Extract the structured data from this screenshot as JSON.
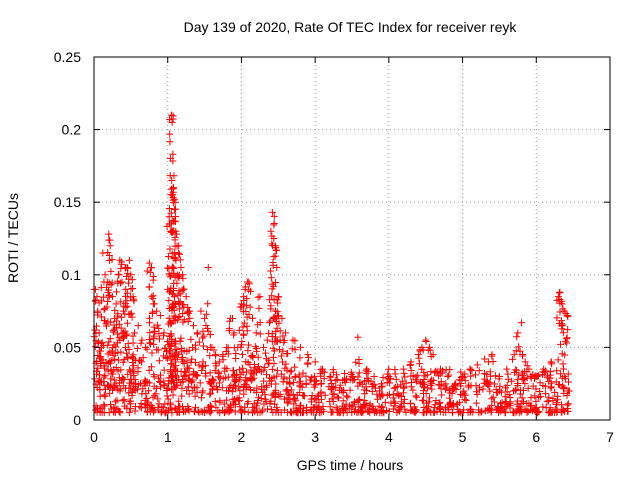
{
  "chart_data": {
    "type": "scatter",
    "title": "Day 139 of 2020, Rate Of TEC Index for receiver reyk",
    "xlabel": "GPS time / hours",
    "ylabel": "ROTI / TECUs",
    "xlim": [
      0,
      7
    ],
    "ylim": [
      0,
      0.25
    ],
    "x_ticks": [
      0,
      1,
      2,
      3,
      4,
      5,
      6,
      7
    ],
    "x_tick_labels": [
      "0",
      "1",
      "2",
      "3",
      "4",
      "5",
      "6",
      "7"
    ],
    "y_ticks": [
      0,
      0.05,
      0.1,
      0.15,
      0.2,
      0.25
    ],
    "y_tick_labels": [
      "0",
      "0.05",
      "0.1",
      "0.15",
      "0.2",
      "0.25"
    ],
    "grid": true,
    "marker": "+",
    "series": [
      {
        "name": "ROTI",
        "color": "#ff0000",
        "points": [
          [
            0.02,
            0.09
          ],
          [
            0.04,
            0.085
          ],
          [
            0.05,
            0.075
          ],
          [
            0.07,
            0.06
          ],
          [
            0.1,
            0.05
          ],
          [
            0.12,
            0.115
          ],
          [
            0.15,
            0.1
          ],
          [
            0.18,
            0.095
          ],
          [
            0.2,
            0.128
          ],
          [
            0.22,
            0.12
          ],
          [
            0.25,
            0.085
          ],
          [
            0.28,
            0.07
          ],
          [
            0.3,
            0.08
          ],
          [
            0.33,
            0.1
          ],
          [
            0.35,
            0.11
          ],
          [
            0.38,
            0.095
          ],
          [
            0.4,
            0.075
          ],
          [
            0.43,
            0.09
          ],
          [
            0.45,
            0.105
          ],
          [
            0.48,
            0.11
          ],
          [
            0.5,
            0.1
          ],
          [
            0.53,
            0.085
          ],
          [
            0.55,
            0.06
          ],
          [
            0.6,
            0.065
          ],
          [
            0.65,
            0.055
          ],
          [
            0.7,
            0.05
          ],
          [
            0.75,
            0.108
          ],
          [
            0.78,
            0.105
          ],
          [
            0.82,
            0.08
          ],
          [
            0.85,
            0.075
          ],
          [
            0.9,
            0.072
          ],
          [
            0.95,
            0.06
          ],
          [
            1.0,
            0.09
          ],
          [
            1.02,
            0.14
          ],
          [
            1.04,
            0.13
          ],
          [
            1.05,
            0.21
          ],
          [
            1.06,
            0.205
          ],
          [
            1.07,
            0.183
          ],
          [
            1.08,
            0.16
          ],
          [
            1.09,
            0.152
          ],
          [
            1.1,
            0.15
          ],
          [
            1.12,
            0.128
          ],
          [
            1.15,
            0.12
          ],
          [
            1.18,
            0.105
          ],
          [
            1.2,
            0.1
          ],
          [
            1.22,
            0.09
          ],
          [
            1.25,
            0.085
          ],
          [
            1.28,
            0.075
          ],
          [
            1.3,
            0.07
          ],
          [
            1.35,
            0.065
          ],
          [
            1.4,
            0.06
          ],
          [
            1.45,
            0.075
          ],
          [
            1.5,
            0.07
          ],
          [
            1.55,
            0.105
          ],
          [
            1.6,
            0.05
          ],
          [
            1.65,
            0.045
          ],
          [
            1.7,
            0.04
          ],
          [
            1.75,
            0.045
          ],
          [
            1.8,
            0.05
          ],
          [
            1.85,
            0.07
          ],
          [
            1.9,
            0.06
          ],
          [
            1.95,
            0.05
          ],
          [
            2.0,
            0.08
          ],
          [
            2.03,
            0.085
          ],
          [
            2.05,
            0.09
          ],
          [
            2.08,
            0.095
          ],
          [
            2.1,
            0.095
          ],
          [
            2.15,
            0.07
          ],
          [
            2.2,
            0.06
          ],
          [
            2.25,
            0.085
          ],
          [
            2.3,
            0.05
          ],
          [
            2.35,
            0.055
          ],
          [
            2.4,
            0.13
          ],
          [
            2.42,
            0.143
          ],
          [
            2.44,
            0.125
          ],
          [
            2.46,
            0.12
          ],
          [
            2.48,
            0.105
          ],
          [
            2.5,
            0.085
          ],
          [
            2.55,
            0.07
          ],
          [
            2.6,
            0.06
          ],
          [
            2.7,
            0.055
          ],
          [
            2.8,
            0.05
          ],
          [
            2.9,
            0.045
          ],
          [
            3.0,
            0.04
          ],
          [
            3.1,
            0.035
          ],
          [
            3.2,
            0.03
          ],
          [
            3.3,
            0.028
          ],
          [
            3.4,
            0.032
          ],
          [
            3.5,
            0.03
          ],
          [
            3.58,
            0.057
          ],
          [
            3.7,
            0.035
          ],
          [
            3.8,
            0.03
          ],
          [
            3.9,
            0.025
          ],
          [
            4.0,
            0.03
          ],
          [
            4.1,
            0.028
          ],
          [
            4.2,
            0.035
          ],
          [
            4.3,
            0.04
          ],
          [
            4.4,
            0.045
          ],
          [
            4.45,
            0.05
          ],
          [
            4.5,
            0.055
          ],
          [
            4.55,
            0.05
          ],
          [
            4.6,
            0.045
          ],
          [
            4.7,
            0.035
          ],
          [
            4.8,
            0.03
          ],
          [
            4.9,
            0.025
          ],
          [
            5.0,
            0.03
          ],
          [
            5.1,
            0.035
          ],
          [
            5.2,
            0.038
          ],
          [
            5.3,
            0.042
          ],
          [
            5.35,
            0.04
          ],
          [
            5.4,
            0.045
          ],
          [
            5.5,
            0.03
          ],
          [
            5.6,
            0.035
          ],
          [
            5.7,
            0.045
          ],
          [
            5.75,
            0.06
          ],
          [
            5.8,
            0.067
          ],
          [
            5.85,
            0.04
          ],
          [
            5.9,
            0.035
          ],
          [
            6.0,
            0.03
          ],
          [
            6.1,
            0.035
          ],
          [
            6.2,
            0.04
          ],
          [
            6.3,
            0.085
          ],
          [
            6.32,
            0.088
          ],
          [
            6.35,
            0.08
          ],
          [
            6.38,
            0.075
          ],
          [
            6.42,
            0.072
          ],
          [
            6.45,
            0.02
          ]
        ],
        "dense_band": {
          "x_range": [
            0,
            6.45
          ],
          "y_range": [
            0.005,
            0.035
          ],
          "point_count": 900
        }
      }
    ]
  }
}
